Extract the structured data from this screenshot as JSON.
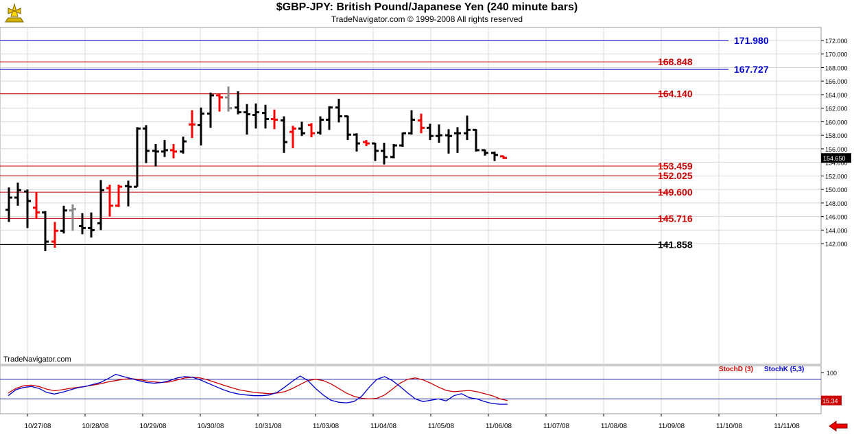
{
  "header": {
    "title": "$GBP-JPY:  British Pound/Japanese Yen  (240 minute bars)",
    "subtitle": "TradeNavigator.com © 1999-2008 All rights reserved",
    "watermark": "TradeNavigator.com"
  },
  "colors": {
    "background": "#ffffff",
    "blue_level": "#0000cc",
    "red_level": "#cc0000",
    "black_level": "#000000",
    "bar_black": "#000000",
    "bar_red": "#ff0000",
    "bar_gray": "#888888",
    "stoch_d": "#cc0000",
    "stoch_k": "#0000cc",
    "grid": "#d8d8d8"
  },
  "chart_data": [
    {
      "type": "ohlc",
      "title": "$GBP-JPY:  British Pound/Japanese Yen  (240 minute bars)",
      "ylim": [
        140.6,
        172.8
      ],
      "y_ticks": [
        "172.000",
        "170.000",
        "168.000",
        "166.000",
        "164.000",
        "162.000",
        "160.000",
        "158.000",
        "156.000",
        "154.000",
        "152.000",
        "150.000",
        "148.000",
        "146.000",
        "144.000",
        "142.000"
      ],
      "y_tick_values": [
        172,
        170,
        168,
        166,
        164,
        162,
        160,
        158,
        156,
        154,
        152,
        150,
        148,
        146,
        144,
        142
      ],
      "x_tick_labels": [
        "10/27/08",
        "10/28/08",
        "10/29/08",
        "10/30/08",
        "10/31/08",
        "11/03/08",
        "11/04/08",
        "11/05/08",
        "11/06/08",
        "11/07/08",
        "11/08/08",
        "11/09/08",
        "11/10/08",
        "11/11/08"
      ],
      "last_price": "154.650",
      "levels": [
        {
          "label": "171.980",
          "value": 171.98,
          "color": "blue"
        },
        {
          "label": "168.848",
          "value": 168.848,
          "color": "red"
        },
        {
          "label": "167.727",
          "value": 167.727,
          "color": "blue"
        },
        {
          "label": "164.140",
          "value": 164.14,
          "color": "red"
        },
        {
          "label": "153.459",
          "value": 153.459,
          "color": "red"
        },
        {
          "label": "152.025",
          "value": 152.025,
          "color": "red"
        },
        {
          "label": "149.600",
          "value": 149.6,
          "color": "red"
        },
        {
          "label": "145.716",
          "value": 145.716,
          "color": "red"
        },
        {
          "label": "141.858",
          "value": 141.858,
          "color": "black"
        }
      ],
      "bars": [
        {
          "o": 147.0,
          "h": 150.3,
          "l": 145.2,
          "c": 148.8,
          "color": "black"
        },
        {
          "o": 148.8,
          "h": 151.0,
          "l": 147.6,
          "c": 149.9,
          "color": "black"
        },
        {
          "o": 149.7,
          "h": 150.0,
          "l": 144.3,
          "c": 148.3,
          "color": "black"
        },
        {
          "o": 147.3,
          "h": 149.6,
          "l": 145.7,
          "c": 146.6,
          "color": "red"
        },
        {
          "o": 146.6,
          "h": 146.8,
          "l": 140.9,
          "c": 142.3,
          "color": "black"
        },
        {
          "o": 142.3,
          "h": 145.2,
          "l": 141.4,
          "c": 143.9,
          "color": "red"
        },
        {
          "o": 143.9,
          "h": 147.6,
          "l": 143.5,
          "c": 146.9,
          "color": "black"
        },
        {
          "o": 146.9,
          "h": 147.8,
          "l": 143.9,
          "c": 147.1,
          "color": "gray"
        },
        {
          "o": 144.6,
          "h": 146.5,
          "l": 143.4,
          "c": 144.3,
          "color": "black"
        },
        {
          "o": 144.3,
          "h": 146.6,
          "l": 142.9,
          "c": 144.0,
          "color": "black"
        },
        {
          "o": 145.0,
          "h": 151.4,
          "l": 144.0,
          "c": 149.9,
          "color": "black"
        },
        {
          "o": 150.2,
          "h": 150.7,
          "l": 146.0,
          "c": 147.6,
          "color": "red"
        },
        {
          "o": 147.6,
          "h": 150.7,
          "l": 147.4,
          "c": 150.4,
          "color": "red"
        },
        {
          "o": 150.5,
          "h": 151.3,
          "l": 147.5,
          "c": 150.4,
          "color": "black"
        },
        {
          "o": 150.4,
          "h": 159.2,
          "l": 150.4,
          "c": 159.0,
          "color": "black"
        },
        {
          "o": 159.0,
          "h": 159.5,
          "l": 153.9,
          "c": 155.7,
          "color": "black"
        },
        {
          "o": 155.7,
          "h": 156.7,
          "l": 153.4,
          "c": 155.6,
          "color": "black"
        },
        {
          "o": 155.6,
          "h": 157.3,
          "l": 154.8,
          "c": 155.8,
          "color": "black"
        },
        {
          "o": 155.8,
          "h": 156.7,
          "l": 154.6,
          "c": 155.6,
          "color": "red"
        },
        {
          "o": 155.6,
          "h": 157.8,
          "l": 155.3,
          "c": 157.1,
          "color": "black"
        },
        {
          "o": 159.6,
          "h": 161.7,
          "l": 157.6,
          "c": 159.6,
          "color": "red"
        },
        {
          "o": 159.5,
          "h": 162.1,
          "l": 156.5,
          "c": 161.2,
          "color": "black"
        },
        {
          "o": 161.2,
          "h": 164.3,
          "l": 159.1,
          "c": 163.9,
          "color": "black"
        },
        {
          "o": 163.9,
          "h": 164.1,
          "l": 161.5,
          "c": 163.6,
          "color": "red"
        },
        {
          "o": 163.6,
          "h": 165.2,
          "l": 161.5,
          "c": 162.0,
          "color": "gray"
        },
        {
          "o": 162.1,
          "h": 164.5,
          "l": 161.1,
          "c": 161.4,
          "color": "black"
        },
        {
          "o": 161.4,
          "h": 162.6,
          "l": 158.1,
          "c": 161.1,
          "color": "black"
        },
        {
          "o": 161.0,
          "h": 162.7,
          "l": 159.0,
          "c": 161.4,
          "color": "black"
        },
        {
          "o": 161.3,
          "h": 162.5,
          "l": 159.0,
          "c": 160.4,
          "color": "black"
        },
        {
          "o": 160.4,
          "h": 161.8,
          "l": 158.9,
          "c": 160.3,
          "color": "red"
        },
        {
          "o": 160.2,
          "h": 160.8,
          "l": 155.4,
          "c": 157.0,
          "color": "black"
        },
        {
          "o": 158.5,
          "h": 159.4,
          "l": 156.1,
          "c": 159.0,
          "color": "red"
        },
        {
          "o": 159.0,
          "h": 160.0,
          "l": 157.9,
          "c": 158.3,
          "color": "black"
        },
        {
          "o": 159.5,
          "h": 159.8,
          "l": 157.7,
          "c": 158.3,
          "color": "red"
        },
        {
          "o": 158.4,
          "h": 160.8,
          "l": 158.1,
          "c": 160.3,
          "color": "black"
        },
        {
          "o": 160.3,
          "h": 162.3,
          "l": 158.8,
          "c": 162.1,
          "color": "black"
        },
        {
          "o": 162.1,
          "h": 163.4,
          "l": 159.9,
          "c": 160.8,
          "color": "black"
        },
        {
          "o": 160.8,
          "h": 160.9,
          "l": 157.3,
          "c": 158.1,
          "color": "black"
        },
        {
          "o": 158.1,
          "h": 158.3,
          "l": 155.6,
          "c": 156.8,
          "color": "black"
        },
        {
          "o": 157.0,
          "h": 157.3,
          "l": 156.4,
          "c": 156.8,
          "color": "red"
        },
        {
          "o": 156.8,
          "h": 156.9,
          "l": 154.2,
          "c": 155.7,
          "color": "black"
        },
        {
          "o": 155.7,
          "h": 156.9,
          "l": 153.7,
          "c": 154.8,
          "color": "black"
        },
        {
          "o": 154.8,
          "h": 156.7,
          "l": 154.6,
          "c": 156.5,
          "color": "black"
        },
        {
          "o": 156.5,
          "h": 158.4,
          "l": 156.3,
          "c": 158.3,
          "color": "black"
        },
        {
          "o": 158.3,
          "h": 161.7,
          "l": 158.1,
          "c": 160.3,
          "color": "black"
        },
        {
          "o": 160.2,
          "h": 161.2,
          "l": 158.3,
          "c": 159.1,
          "color": "red"
        },
        {
          "o": 159.1,
          "h": 159.7,
          "l": 157.3,
          "c": 157.9,
          "color": "black"
        },
        {
          "o": 157.9,
          "h": 159.6,
          "l": 156.9,
          "c": 158.0,
          "color": "black"
        },
        {
          "o": 158.0,
          "h": 158.9,
          "l": 155.3,
          "c": 157.9,
          "color": "black"
        },
        {
          "o": 158.3,
          "h": 159.2,
          "l": 155.4,
          "c": 158.3,
          "color": "black"
        },
        {
          "o": 158.3,
          "h": 160.9,
          "l": 157.3,
          "c": 158.8,
          "color": "black"
        },
        {
          "o": 158.8,
          "h": 158.9,
          "l": 155.6,
          "c": 155.8,
          "color": "black"
        },
        {
          "o": 155.8,
          "h": 155.9,
          "l": 155.0,
          "c": 155.4,
          "color": "black"
        },
        {
          "o": 155.4,
          "h": 155.6,
          "l": 154.2,
          "c": 155.1,
          "color": "black"
        },
        {
          "o": 154.9,
          "h": 155.0,
          "l": 154.5,
          "c": 154.65,
          "color": "red"
        }
      ]
    },
    {
      "type": "line",
      "title": "",
      "ylim": [
        0,
        115
      ],
      "y_ticks": [
        "100"
      ],
      "y_tick_values": [
        100
      ],
      "guide_levels": [
        80,
        20
      ],
      "last_value": "15.34",
      "series": [
        {
          "name": "StochD (3)",
          "color": "red",
          "values": [
            38,
            52,
            60,
            62,
            58,
            50,
            45,
            48,
            52,
            55,
            58,
            62,
            66,
            72,
            76,
            80,
            82,
            79,
            75,
            72,
            70,
            72,
            78,
            84,
            86,
            84,
            78,
            70,
            62,
            55,
            48,
            44,
            40,
            38,
            36,
            38,
            42,
            52,
            64,
            76,
            80,
            76,
            66,
            52,
            38,
            28,
            22,
            20,
            22,
            32,
            50,
            68,
            80,
            84,
            78,
            68,
            56,
            46,
            42,
            44,
            46,
            42,
            36,
            30,
            20,
            15
          ]
        },
        {
          "name": "StochK (5,3)",
          "color": "blue",
          "values": [
            30,
            48,
            55,
            58,
            52,
            40,
            35,
            40,
            47,
            54,
            58,
            64,
            70,
            82,
            95,
            88,
            82,
            76,
            70,
            68,
            70,
            76,
            84,
            88,
            86,
            78,
            68,
            58,
            48,
            40,
            35,
            32,
            30,
            30,
            32,
            40,
            56,
            74,
            90,
            76,
            52,
            32,
            16,
            10,
            8,
            12,
            28,
            56,
            80,
            88,
            76,
            58,
            38,
            20,
            12,
            16,
            20,
            14,
            30,
            36,
            24,
            20,
            12,
            6,
            4,
            4
          ]
        }
      ]
    }
  ],
  "legend": {
    "stoch_d_label": "StochD (3)",
    "stoch_k_label": "StochK (5,3)"
  }
}
